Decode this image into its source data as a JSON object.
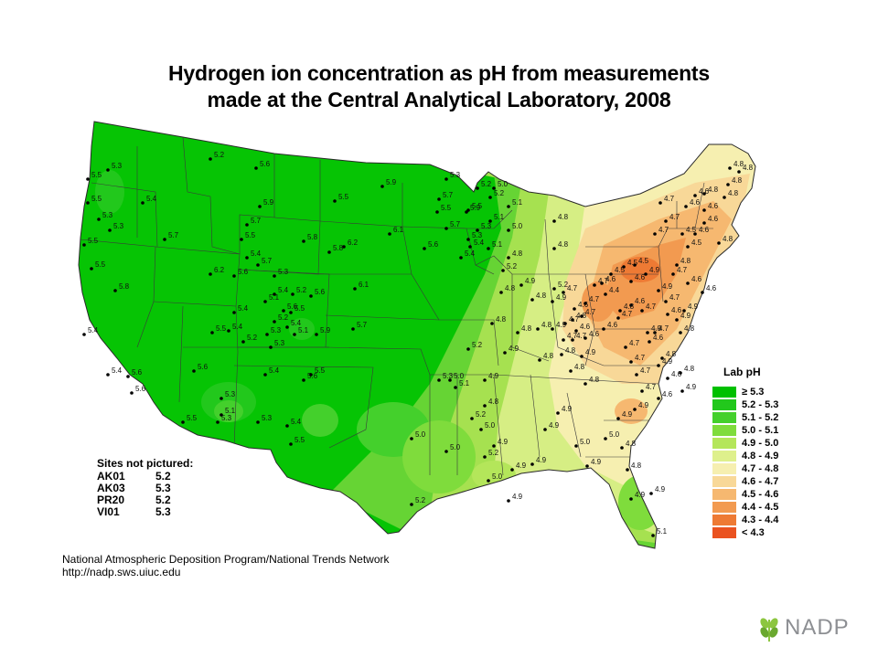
{
  "title_line1": "Hydrogen ion concentration as pH from measurements",
  "title_line2": "made at the Central Analytical Laboratory, 2008",
  "legend": {
    "title": "Lab pH",
    "classes": [
      {
        "label": "≥ 5.3",
        "color": "#00c000"
      },
      {
        "label": "5.2 - 5.3",
        "color": "#22c81c"
      },
      {
        "label": "5.1 - 5.2",
        "color": "#44d02c"
      },
      {
        "label": "5.0 - 5.1",
        "color": "#7fdc3c"
      },
      {
        "label": "4.9 - 5.0",
        "color": "#b4e65a"
      },
      {
        "label": "4.8 - 4.9",
        "color": "#def08c"
      },
      {
        "label": "4.7 - 4.8",
        "color": "#f6efb0"
      },
      {
        "label": "4.6 - 4.7",
        "color": "#f8d898"
      },
      {
        "label": "4.5 - 4.6",
        "color": "#f6b870"
      },
      {
        "label": "4.4 - 4.5",
        "color": "#f29a50"
      },
      {
        "label": "4.3 - 4.4",
        "color": "#ee7a34"
      },
      {
        "label": "< 4.3",
        "color": "#ea5220"
      }
    ]
  },
  "sites_not_pictured": {
    "title": "Sites not pictured:",
    "rows": [
      {
        "id": "AK01",
        "value": "5.2"
      },
      {
        "id": "AK03",
        "value": "5.3"
      },
      {
        "id": "PR20",
        "value": "5.2"
      },
      {
        "id": "VI01",
        "value": "5.3"
      }
    ]
  },
  "footer_line1": "National Atmospheric Deposition Program/National Trends Network",
  "footer_line2": "http://nadp.sws.uiuc.edu",
  "logo_text": "NADP",
  "site_values": [
    "5.3",
    "5.5",
    "5.5",
    "5.3",
    "5.3",
    "5.5",
    "5.5",
    "5.8",
    "5.4",
    "5.4",
    "5.6",
    "5.6",
    "5.5",
    "5.2",
    "5.6",
    "5.4",
    "5.7",
    "5.7",
    "5.5",
    "5.4",
    "5.7",
    "6.2",
    "5.6",
    "5.3",
    "5.4",
    "5.1",
    "5.2",
    "5.6",
    "5.4",
    "5.2",
    "5.3",
    "5.4",
    "5.5",
    "5.1",
    "5.9",
    "5.2",
    "5.3",
    "5.6",
    "5.4",
    "5.3",
    "5.3",
    "5.1",
    "5.3",
    "5.4",
    "5.5",
    "5.4",
    "5.6",
    "5.9",
    "5.5",
    "5.9",
    "5.8",
    "6.2",
    "6.1",
    "6.1",
    "5.7",
    "5.5",
    "5.6",
    "5.5",
    "5.8",
    "5.6",
    "5.2",
    "5.5",
    "5.3",
    "5.4",
    "5.9",
    "5.4",
    "5.5",
    "5.7",
    "5.7",
    "5.3",
    "5.2",
    "5.1",
    "5.3",
    "5.1",
    "5.2",
    "5.3",
    "5.0",
    "5.2",
    "5.2",
    "5.0",
    "5.0",
    "5.1",
    "5.0",
    "5.2",
    "5.0",
    "5.2",
    "5.1",
    "4.8",
    "4.8",
    "4.8",
    "4.8",
    "4.9",
    "5.2",
    "4.8",
    "4.8",
    "4.9",
    "4.8",
    "4.9",
    "4.8",
    "4.8",
    "4.9",
    "4.8",
    "5.0",
    "4.9",
    "4.9",
    "4.9",
    "5.0",
    "4.9",
    "4.9",
    "4.9",
    "5.0",
    "4.9",
    "4.9",
    "4.8",
    "5.0",
    "4.8",
    "4.9",
    "5.1",
    "4.9",
    "4.9",
    "4.8",
    "4.8",
    "4.7",
    "4.7",
    "4.6",
    "4.7",
    "4.6",
    "4.4",
    "4.6",
    "4.7",
    "4.5",
    "4.5",
    "4.5",
    "4.6",
    "4.7",
    "4.6",
    "4.7",
    "4.6",
    "4.7",
    "4.7",
    "4.6",
    "4.7",
    "4.7",
    "4.6",
    "4.7",
    "4.6",
    "4.6",
    "4.5",
    "4.5",
    "4.8",
    "4.7",
    "4.6",
    "4.6",
    "4.6",
    "4.6",
    "4.6",
    "4.6",
    "4.7",
    "4.7",
    "4.7",
    "4.8",
    "4.8",
    "4.8",
    "4.8",
    "4.8",
    "4.8",
    "4.9",
    "4.9",
    "4.8",
    "4.7",
    "4.6",
    "4.7",
    "4.9",
    "4.9",
    "4.9",
    "4.9",
    "4.8",
    "4.8",
    "4.9",
    "4.8",
    "4.8",
    "4.6",
    "4.7",
    "4.7",
    "4.9",
    "4.8",
    "4.9",
    "5.1"
  ]
}
